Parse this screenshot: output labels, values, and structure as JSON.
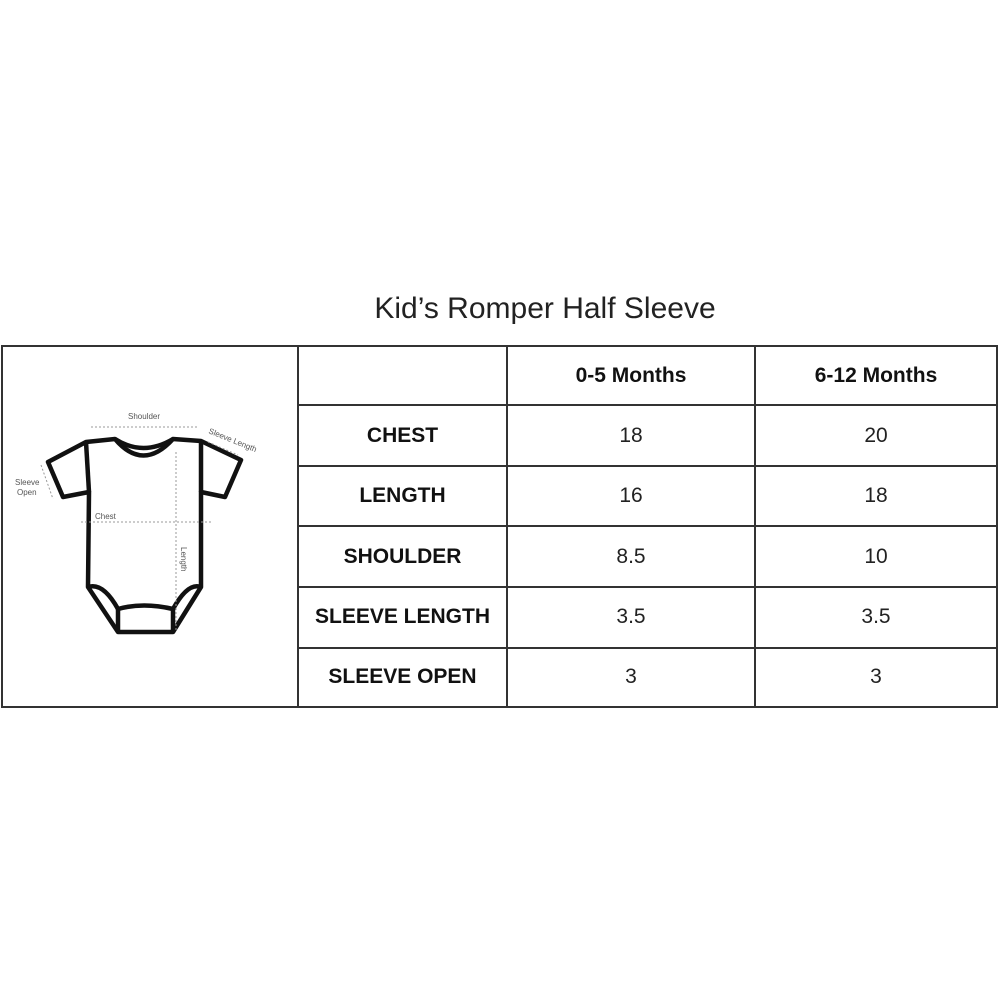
{
  "title": "Kid’s Romper Half Sleeve",
  "diagram": {
    "labels": {
      "shoulder": "Shoulder",
      "sleeve_length": "Sleeve Length",
      "sleeve_open_1": "Sleeve",
      "sleeve_open_2": "Open",
      "chest": "Chest",
      "length": "Length"
    }
  },
  "table": {
    "columns": [
      "",
      "0-5 Months",
      "6-12 Months"
    ],
    "rows": [
      {
        "label": "CHEST",
        "values": [
          "18",
          "20"
        ]
      },
      {
        "label": "LENGTH",
        "values": [
          "16",
          "18"
        ]
      },
      {
        "label": "SHOULDER",
        "values": [
          "8.5",
          "10"
        ]
      },
      {
        "label": "SLEEVE LENGTH",
        "values": [
          "3.5",
          "3.5"
        ]
      },
      {
        "label": "SLEEVE OPEN",
        "values": [
          "3",
          "3"
        ]
      }
    ]
  }
}
